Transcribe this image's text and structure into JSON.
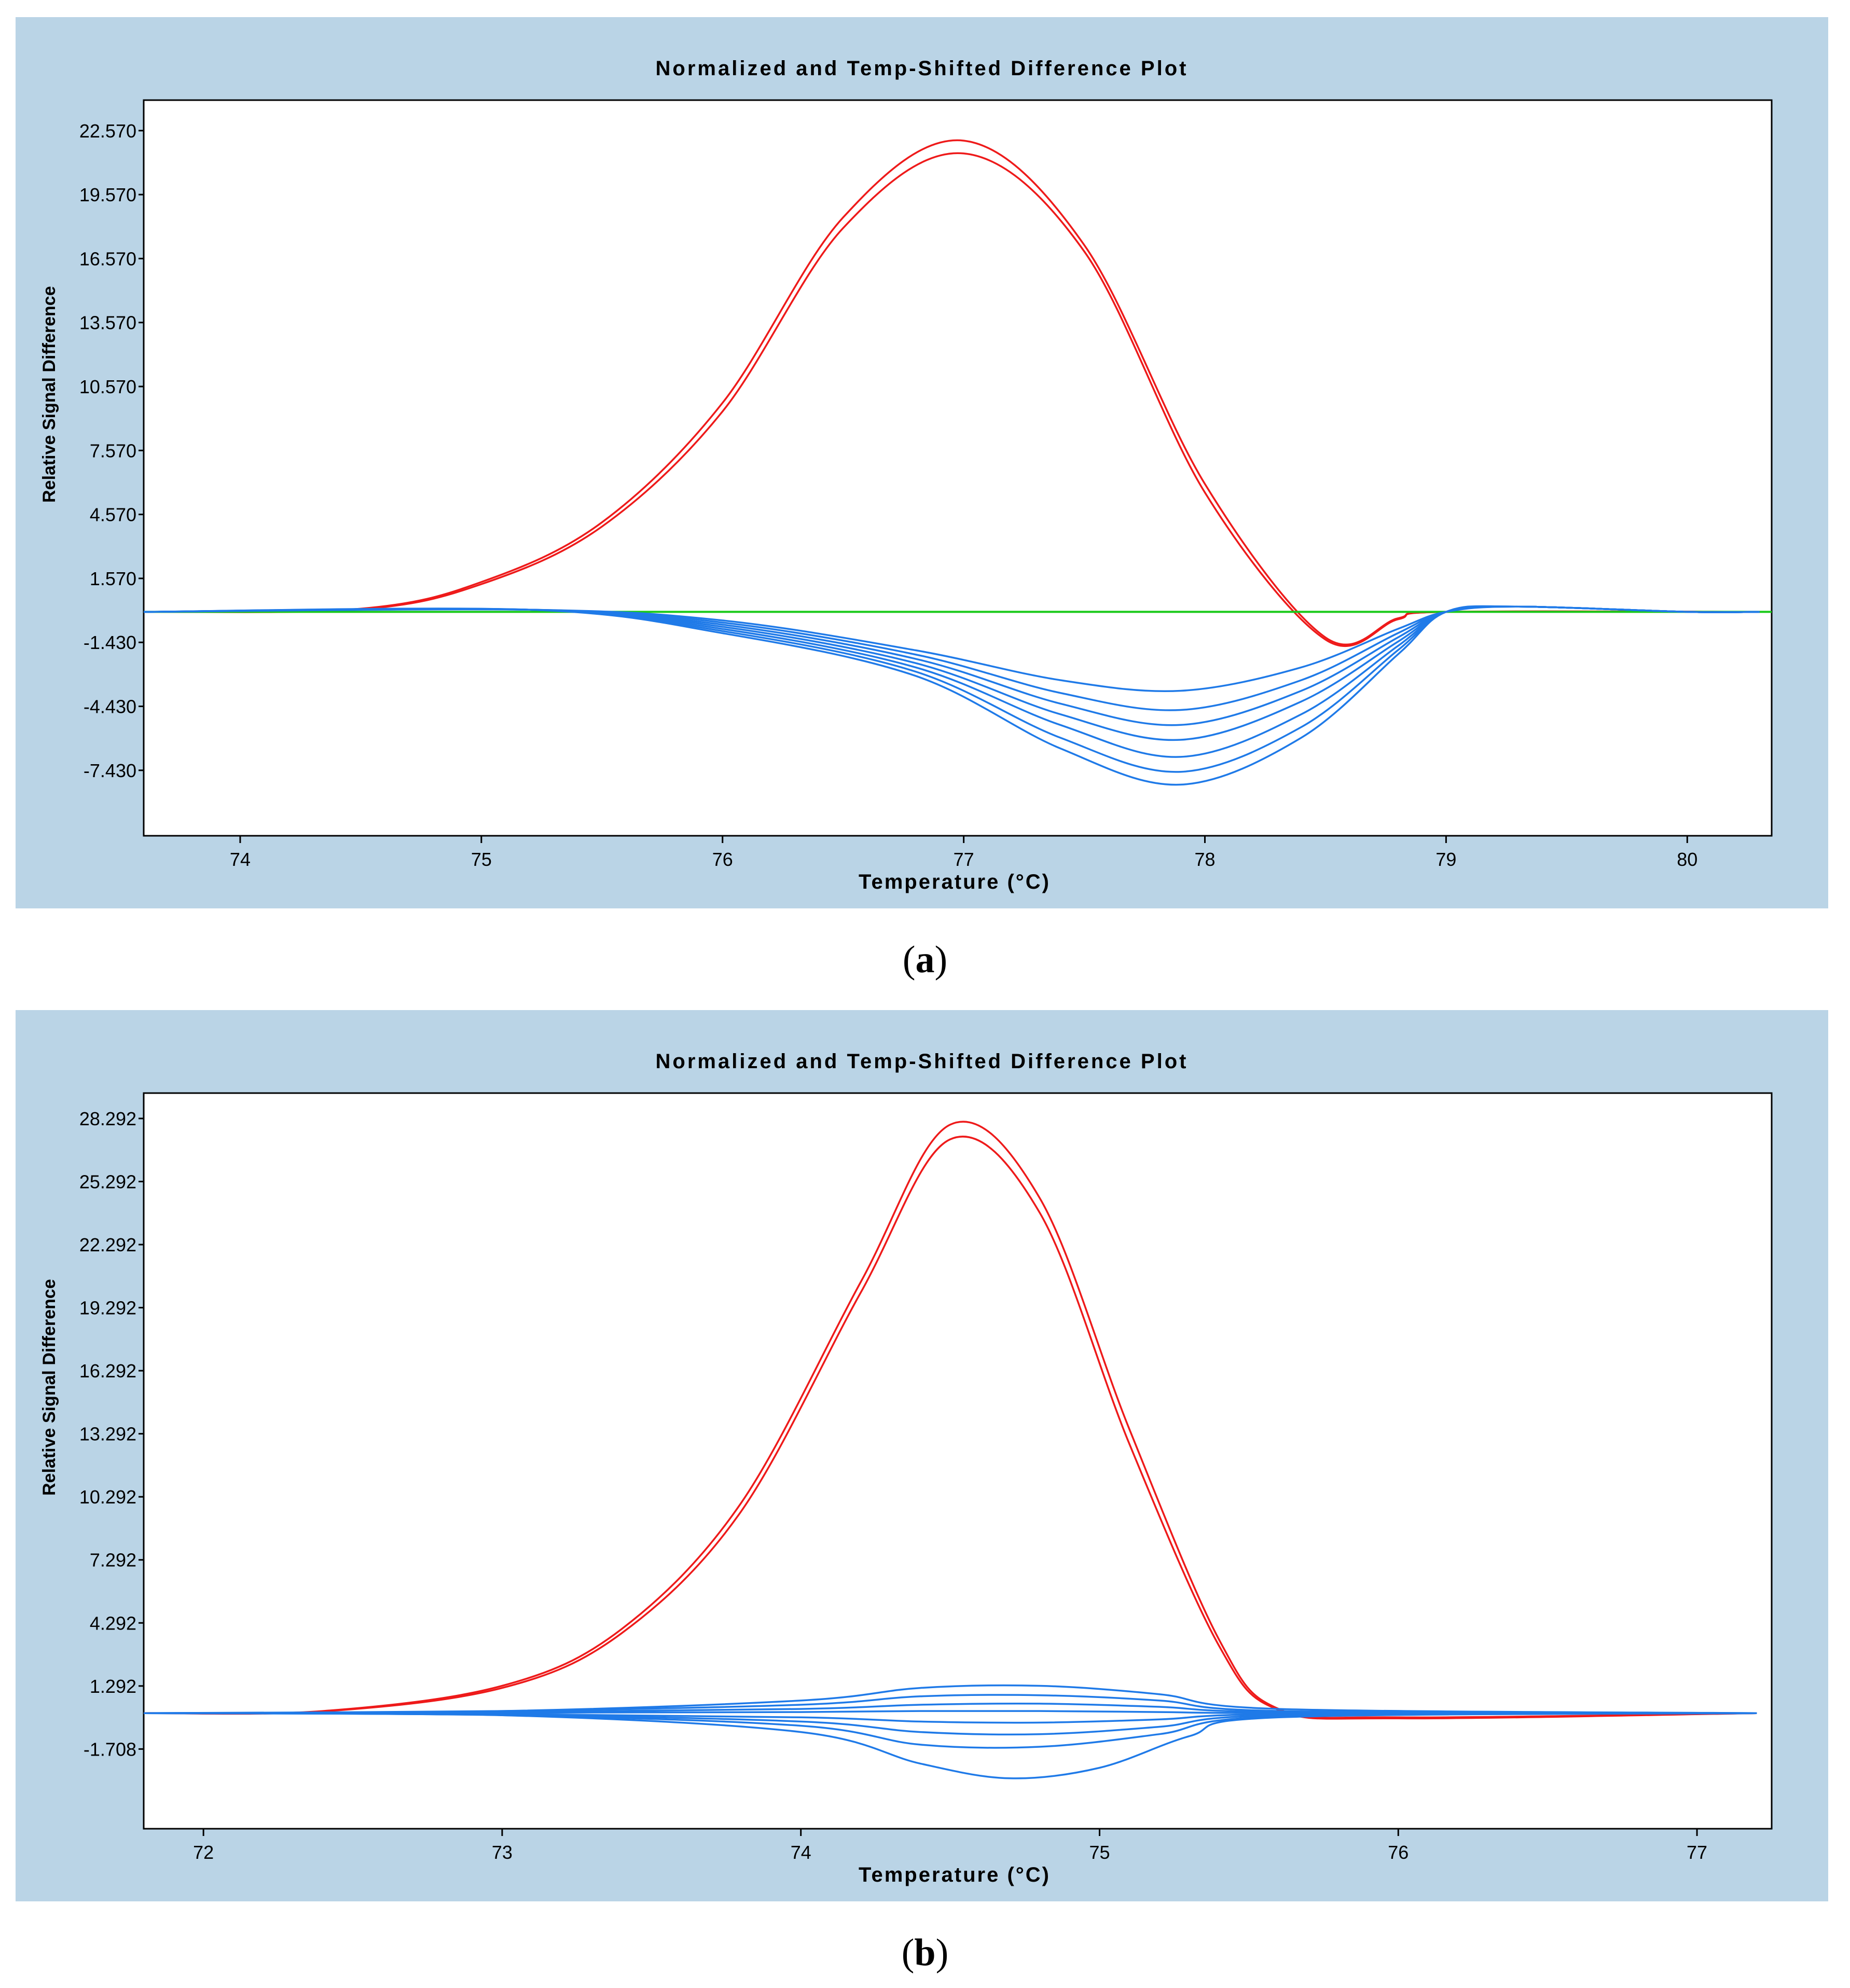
{
  "colors": {
    "frame_bg": "#bad4e6",
    "plot_bg": "#ffffff",
    "low_group": "#1f7ae8",
    "high_group": "#ee1a1a",
    "reference": "#19c919"
  },
  "captions": [
    {
      "open": "(",
      "letter": "a",
      "close": ")"
    },
    {
      "open": "(",
      "letter": "b",
      "close": ")"
    }
  ],
  "chart_data": [
    {
      "type": "line",
      "title": "Normalized and Temp-Shifted Difference Plot",
      "xlabel": "Temperature (°C)",
      "ylabel": "Relative Signal Difference",
      "xlim": [
        73.6,
        80.35
      ],
      "ylim": [
        -10.5,
        24.0
      ],
      "xticks": [
        74,
        75,
        76,
        77,
        78,
        79,
        80
      ],
      "xtick_labels": [
        "74",
        "75",
        "76",
        "77",
        "78",
        "79",
        "80"
      ],
      "yticks": [
        22.57,
        19.57,
        16.57,
        13.57,
        10.57,
        7.57,
        4.57,
        1.57,
        -1.43,
        -4.43,
        -7.43
      ],
      "ytick_labels": [
        "22.570",
        "19.570",
        "16.570",
        "13.570",
        "10.570",
        "7.570",
        "4.570",
        "1.570",
        "-1.430",
        "-4.430",
        "-7.430"
      ],
      "series": [
        {
          "name": "red-1",
          "color": "#ee1a1a",
          "x": [
            73.6,
            74.5,
            75.0,
            75.5,
            76.0,
            76.5,
            77.0,
            77.5,
            78.0,
            78.5,
            78.8,
            79.0,
            80.3
          ],
          "y": [
            0,
            0.15,
            1.4,
            4.2,
            9.8,
            18.5,
            22.1,
            17.2,
            6.0,
            -1.2,
            -0.3,
            0,
            0
          ]
        },
        {
          "name": "red-2",
          "color": "#ee1a1a",
          "x": [
            73.6,
            74.5,
            75.0,
            75.5,
            76.0,
            76.5,
            77.0,
            77.5,
            78.0,
            78.5,
            78.8,
            79.0,
            80.3
          ],
          "y": [
            0,
            0.12,
            1.3,
            4.0,
            9.4,
            18.0,
            21.5,
            16.9,
            5.6,
            -1.3,
            -0.35,
            0,
            0
          ]
        },
        {
          "name": "reference",
          "color": "#19c919",
          "x": [
            73.6,
            80.35
          ],
          "y": [
            0,
            0
          ]
        },
        {
          "name": "blue-1",
          "color": "#1f7ae8",
          "x": [
            73.6,
            75.2,
            76.0,
            76.8,
            77.4,
            77.9,
            78.4,
            78.8,
            79.0,
            79.3,
            80.0,
            80.3
          ],
          "y": [
            0,
            0.1,
            -0.4,
            -1.8,
            -3.2,
            -3.7,
            -2.6,
            -0.8,
            0,
            0.25,
            0,
            0
          ]
        },
        {
          "name": "blue-2",
          "color": "#1f7ae8",
          "x": [
            73.6,
            75.2,
            76.0,
            76.8,
            77.4,
            77.9,
            78.4,
            78.8,
            79.0,
            79.3,
            80.0,
            80.3
          ],
          "y": [
            0,
            0.1,
            -0.5,
            -2.0,
            -3.8,
            -4.6,
            -3.2,
            -1.0,
            0,
            0.25,
            0,
            0
          ]
        },
        {
          "name": "blue-3",
          "color": "#1f7ae8",
          "x": [
            73.6,
            75.2,
            76.0,
            76.8,
            77.4,
            77.9,
            78.4,
            78.8,
            79.0,
            79.3,
            80.0,
            80.3
          ],
          "y": [
            0,
            0.1,
            -0.6,
            -2.2,
            -4.3,
            -5.3,
            -3.7,
            -1.2,
            0,
            0.25,
            0,
            0
          ]
        },
        {
          "name": "blue-4",
          "color": "#1f7ae8",
          "x": [
            73.6,
            75.2,
            76.0,
            76.8,
            77.4,
            77.9,
            78.4,
            78.8,
            79.0,
            79.3,
            80.0,
            80.3
          ],
          "y": [
            0,
            0.1,
            -0.7,
            -2.4,
            -4.8,
            -6.0,
            -4.2,
            -1.4,
            0,
            0.25,
            0,
            0
          ]
        },
        {
          "name": "blue-5",
          "color": "#1f7ae8",
          "x": [
            73.6,
            75.2,
            76.0,
            76.8,
            77.4,
            77.9,
            78.4,
            78.8,
            79.0,
            79.3,
            80.0,
            80.3
          ],
          "y": [
            0,
            0.1,
            -0.8,
            -2.6,
            -5.3,
            -6.8,
            -4.8,
            -1.6,
            0,
            0.25,
            0,
            0
          ]
        },
        {
          "name": "blue-6",
          "color": "#1f7ae8",
          "x": [
            73.6,
            75.2,
            76.0,
            76.8,
            77.4,
            77.9,
            78.4,
            78.8,
            79.0,
            79.3,
            80.0,
            80.3
          ],
          "y": [
            0,
            0.1,
            -0.9,
            -2.8,
            -5.9,
            -7.5,
            -5.4,
            -1.8,
            0,
            0.25,
            0,
            0
          ]
        },
        {
          "name": "blue-7",
          "color": "#1f7ae8",
          "x": [
            73.6,
            75.2,
            76.0,
            76.8,
            77.4,
            77.9,
            78.4,
            78.8,
            79.0,
            79.3,
            80.0,
            80.3
          ],
          "y": [
            0,
            0.1,
            -1.0,
            -3.0,
            -6.4,
            -8.1,
            -5.9,
            -2.0,
            0,
            0.25,
            0,
            0
          ]
        }
      ]
    },
    {
      "type": "line",
      "title": "Normalized and Temp-Shifted Difference Plot",
      "xlabel": "Temperature (°C)",
      "ylabel": "Relative Signal Difference",
      "xlim": [
        71.8,
        77.25
      ],
      "ylim": [
        -5.5,
        29.5
      ],
      "xticks": [
        72,
        73,
        74,
        75,
        76,
        77
      ],
      "xtick_labels": [
        "72",
        "73",
        "74",
        "75",
        "76",
        "77"
      ],
      "yticks": [
        28.292,
        25.292,
        22.292,
        19.292,
        16.292,
        13.292,
        10.292,
        7.292,
        4.292,
        1.292,
        -1.708
      ],
      "ytick_labels": [
        "28.292",
        "25.292",
        "22.292",
        "19.292",
        "16.292",
        "13.292",
        "10.292",
        "7.292",
        "4.292",
        "1.292",
        "-1.708"
      ],
      "series": [
        {
          "name": "red-1",
          "color": "#ee1a1a",
          "x": [
            71.8,
            72.4,
            73.0,
            73.4,
            73.8,
            74.2,
            74.5,
            74.8,
            75.1,
            75.4,
            75.6,
            76.0,
            77.2
          ],
          "y": [
            0,
            0.1,
            1.3,
            4.0,
            10.0,
            20.5,
            28.0,
            24.5,
            13.5,
            3.5,
            0.2,
            -0.2,
            0
          ]
        },
        {
          "name": "red-2",
          "color": "#ee1a1a",
          "x": [
            71.8,
            72.4,
            73.0,
            73.4,
            73.8,
            74.2,
            74.5,
            74.8,
            75.1,
            75.4,
            75.6,
            76.0,
            77.2
          ],
          "y": [
            0,
            0.08,
            1.2,
            3.8,
            9.6,
            20.0,
            27.3,
            23.8,
            12.8,
            3.2,
            0.15,
            -0.25,
            0
          ]
        },
        {
          "name": "blue-1",
          "color": "#1f7ae8",
          "x": [
            71.8,
            73.0,
            74.0,
            74.4,
            74.8,
            75.2,
            75.6,
            77.2
          ],
          "y": [
            0,
            0.1,
            0.6,
            1.2,
            1.3,
            0.9,
            0.2,
            0
          ]
        },
        {
          "name": "blue-2",
          "color": "#1f7ae8",
          "x": [
            71.8,
            73.0,
            74.0,
            74.4,
            74.8,
            75.2,
            75.6,
            77.2
          ],
          "y": [
            0,
            0.1,
            0.4,
            0.8,
            0.85,
            0.6,
            0.1,
            0
          ]
        },
        {
          "name": "blue-3",
          "color": "#1f7ae8",
          "x": [
            71.8,
            73.0,
            74.0,
            74.4,
            74.8,
            75.2,
            75.6,
            77.2
          ],
          "y": [
            0,
            0.05,
            0.2,
            0.4,
            0.45,
            0.3,
            0.05,
            0
          ]
        },
        {
          "name": "blue-4",
          "color": "#1f7ae8",
          "x": [
            71.8,
            73.0,
            74.0,
            74.4,
            74.8,
            75.2,
            75.6,
            77.2
          ],
          "y": [
            0,
            0.02,
            0.05,
            0.1,
            0.1,
            0.05,
            0,
            0
          ]
        },
        {
          "name": "blue-5",
          "color": "#1f7ae8",
          "x": [
            71.8,
            73.0,
            74.0,
            74.4,
            74.8,
            75.2,
            75.6,
            77.2
          ],
          "y": [
            0,
            -0.05,
            -0.2,
            -0.4,
            -0.45,
            -0.3,
            -0.05,
            0
          ]
        },
        {
          "name": "blue-6",
          "color": "#1f7ae8",
          "x": [
            71.8,
            73.0,
            74.0,
            74.4,
            74.8,
            75.2,
            75.6,
            77.2
          ],
          "y": [
            0,
            -0.08,
            -0.4,
            -0.9,
            -1.0,
            -0.65,
            -0.1,
            0
          ]
        },
        {
          "name": "blue-7",
          "color": "#1f7ae8",
          "x": [
            71.8,
            73.0,
            74.0,
            74.4,
            74.8,
            75.2,
            75.6,
            77.2
          ],
          "y": [
            0,
            -0.1,
            -0.6,
            -1.5,
            -1.6,
            -1.0,
            -0.15,
            0
          ]
        },
        {
          "name": "blue-8",
          "color": "#1f7ae8",
          "x": [
            71.8,
            73.0,
            74.0,
            74.4,
            74.7,
            75.0,
            75.3,
            75.6,
            77.2
          ],
          "y": [
            0,
            -0.1,
            -0.9,
            -2.4,
            -3.1,
            -2.6,
            -1.1,
            -0.2,
            0
          ]
        }
      ]
    }
  ]
}
